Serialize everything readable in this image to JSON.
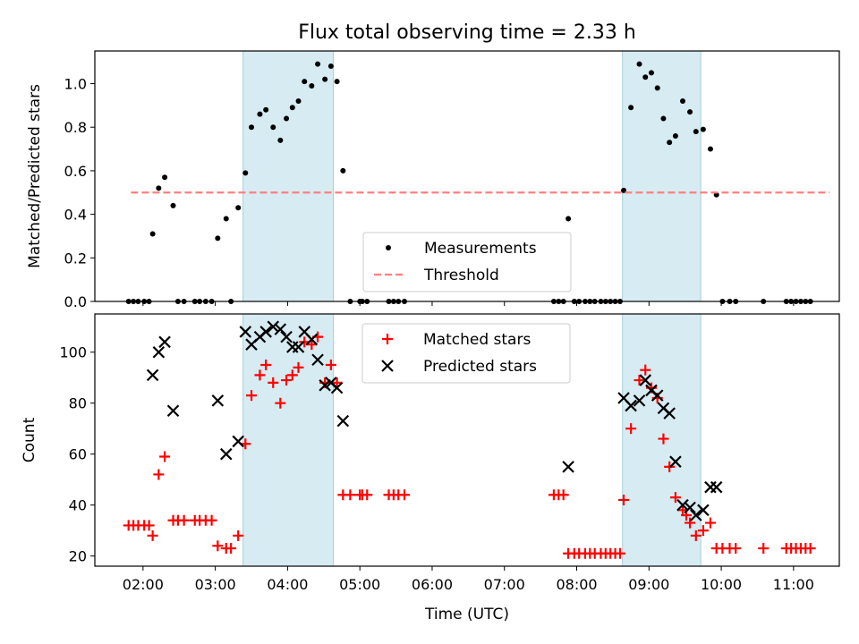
{
  "title": "Flux total observing time = 2.33 h",
  "chart_data": [
    {
      "type": "scatter",
      "ylabel": "Matched/Predicted stars",
      "xlim": [
        "01:20",
        "11:38"
      ],
      "ylim": [
        0,
        1.15
      ],
      "yticks": [
        0.0,
        0.2,
        0.4,
        0.6,
        0.8,
        1.0
      ],
      "ytick_labels": [
        "0.0",
        "0.2",
        "0.4",
        "0.6",
        "0.8",
        "1.0"
      ],
      "shaded_intervals": [
        [
          "03:23",
          "04:38"
        ],
        [
          "08:38",
          "09:43"
        ]
      ],
      "legend_position": "lower center",
      "series": [
        {
          "name": "Measurements",
          "marker": "dot",
          "color": "#000000",
          "points": [
            [
              "01:48",
              0
            ],
            [
              "01:52",
              0
            ],
            [
              "01:56",
              0
            ],
            [
              "02:01",
              0
            ],
            [
              "02:05",
              0
            ],
            [
              "02:08",
              0.31
            ],
            [
              "02:13",
              0.52
            ],
            [
              "02:18",
              0.57
            ],
            [
              "02:25",
              0.44
            ],
            [
              "02:29",
              0
            ],
            [
              "02:34",
              0
            ],
            [
              "02:43",
              0
            ],
            [
              "02:47",
              0
            ],
            [
              "02:52",
              0
            ],
            [
              "02:57",
              0
            ],
            [
              "03:02",
              0.29
            ],
            [
              "03:09",
              0.38
            ],
            [
              "03:13",
              0
            ],
            [
              "03:19",
              0.43
            ],
            [
              "03:25",
              0.59
            ],
            [
              "03:30",
              0.8
            ],
            [
              "03:37",
              0.86
            ],
            [
              "03:42",
              0.88
            ],
            [
              "03:48",
              0.8
            ],
            [
              "03:54",
              0.74
            ],
            [
              "03:59",
              0.84
            ],
            [
              "04:04",
              0.89
            ],
            [
              "04:09",
              0.92
            ],
            [
              "04:14",
              1.01
            ],
            [
              "04:20",
              0.99
            ],
            [
              "04:25",
              1.09
            ],
            [
              "04:31",
              1.02
            ],
            [
              "04:36",
              1.08
            ],
            [
              "04:41",
              1.01
            ],
            [
              "04:46",
              0.6
            ],
            [
              "04:52",
              0
            ],
            [
              "05:00",
              0
            ],
            [
              "05:02",
              0
            ],
            [
              "05:06",
              0
            ],
            [
              "05:24",
              0
            ],
            [
              "05:28",
              0
            ],
            [
              "05:32",
              0
            ],
            [
              "05:37",
              0
            ],
            [
              "07:41",
              0
            ],
            [
              "07:45",
              0
            ],
            [
              "07:49",
              0
            ],
            [
              "07:53",
              0.38
            ],
            [
              "07:58",
              0
            ],
            [
              "08:02",
              0
            ],
            [
              "08:07",
              0
            ],
            [
              "08:11",
              0
            ],
            [
              "08:15",
              0
            ],
            [
              "08:20",
              0
            ],
            [
              "08:24",
              0
            ],
            [
              "08:28",
              0
            ],
            [
              "08:32",
              0
            ],
            [
              "08:36",
              0
            ],
            [
              "08:39",
              0.51
            ],
            [
              "08:45",
              0.89
            ],
            [
              "08:52",
              1.09
            ],
            [
              "08:57",
              1.03
            ],
            [
              "09:02",
              1.05
            ],
            [
              "09:07",
              0.98
            ],
            [
              "09:12",
              0.84
            ],
            [
              "09:17",
              0.73
            ],
            [
              "09:22",
              0.76
            ],
            [
              "09:28",
              0.92
            ],
            [
              "09:34",
              0.87
            ],
            [
              "09:39",
              0.78
            ],
            [
              "09:45",
              0.79
            ],
            [
              "09:51",
              0.7
            ],
            [
              "09:56",
              0.49
            ],
            [
              "10:01",
              0
            ],
            [
              "10:07",
              0
            ],
            [
              "10:12",
              0
            ],
            [
              "10:35",
              0
            ],
            [
              "10:54",
              0
            ],
            [
              "10:58",
              0
            ],
            [
              "11:02",
              0
            ],
            [
              "11:06",
              0
            ],
            [
              "11:10",
              0
            ],
            [
              "11:14",
              0
            ]
          ]
        },
        {
          "name": "Threshold",
          "type": "line",
          "style": "dashed",
          "color": "#ff7f7f",
          "x": [
            "01:50",
            "11:30"
          ],
          "values": [
            0.5,
            0.5
          ]
        }
      ]
    },
    {
      "type": "scatter",
      "xlabel": "Time (UTC)",
      "ylabel": "Count",
      "xlim": [
        "01:20",
        "11:38"
      ],
      "ylim": [
        16,
        115
      ],
      "yticks": [
        20,
        40,
        60,
        80,
        100
      ],
      "ytick_labels": [
        "20",
        "40",
        "60",
        "80",
        "100"
      ],
      "xticks": [
        "02:00",
        "03:00",
        "04:00",
        "05:00",
        "06:00",
        "07:00",
        "08:00",
        "09:00",
        "10:00",
        "11:00"
      ],
      "shaded_intervals": [
        [
          "03:23",
          "04:38"
        ],
        [
          "08:38",
          "09:43"
        ]
      ],
      "legend_position": "upper center",
      "series": [
        {
          "name": "Matched stars",
          "marker": "plus",
          "color": "#ff0000",
          "points": [
            [
              "01:48",
              32
            ],
            [
              "01:52",
              32
            ],
            [
              "01:56",
              32
            ],
            [
              "02:01",
              32
            ],
            [
              "02:05",
              32
            ],
            [
              "02:08",
              28
            ],
            [
              "02:13",
              52
            ],
            [
              "02:18",
              59
            ],
            [
              "02:25",
              34
            ],
            [
              "02:29",
              34
            ],
            [
              "02:34",
              34
            ],
            [
              "02:43",
              34
            ],
            [
              "02:47",
              34
            ],
            [
              "02:52",
              34
            ],
            [
              "02:57",
              34
            ],
            [
              "03:02",
              24
            ],
            [
              "03:09",
              23
            ],
            [
              "03:13",
              23
            ],
            [
              "03:19",
              28
            ],
            [
              "03:25",
              64
            ],
            [
              "03:30",
              83
            ],
            [
              "03:37",
              91
            ],
            [
              "03:42",
              95
            ],
            [
              "03:48",
              88
            ],
            [
              "03:54",
              80
            ],
            [
              "03:59",
              89
            ],
            [
              "04:04",
              91
            ],
            [
              "04:09",
              94
            ],
            [
              "04:14",
              104
            ],
            [
              "04:20",
              103
            ],
            [
              "04:25",
              106
            ],
            [
              "04:31",
              88
            ],
            [
              "04:36",
              95
            ],
            [
              "04:41",
              88
            ],
            [
              "04:46",
              44
            ],
            [
              "04:52",
              44
            ],
            [
              "05:00",
              44
            ],
            [
              "05:02",
              44
            ],
            [
              "05:06",
              44
            ],
            [
              "05:24",
              44
            ],
            [
              "05:28",
              44
            ],
            [
              "05:32",
              44
            ],
            [
              "05:37",
              44
            ],
            [
              "07:41",
              44
            ],
            [
              "07:45",
              44
            ],
            [
              "07:49",
              44
            ],
            [
              "07:53",
              21
            ],
            [
              "07:58",
              21
            ],
            [
              "08:02",
              21
            ],
            [
              "08:07",
              21
            ],
            [
              "08:11",
              21
            ],
            [
              "08:15",
              21
            ],
            [
              "08:20",
              21
            ],
            [
              "08:24",
              21
            ],
            [
              "08:28",
              21
            ],
            [
              "08:32",
              21
            ],
            [
              "08:36",
              21
            ],
            [
              "08:39",
              42
            ],
            [
              "08:45",
              70
            ],
            [
              "08:52",
              89
            ],
            [
              "08:57",
              93
            ],
            [
              "09:02",
              86
            ],
            [
              "09:07",
              82
            ],
            [
              "09:12",
              66
            ],
            [
              "09:17",
              55
            ],
            [
              "09:22",
              43
            ],
            [
              "09:28",
              38
            ],
            [
              "09:31",
              36
            ],
            [
              "09:34",
              33
            ],
            [
              "09:39",
              28
            ],
            [
              "09:45",
              30
            ],
            [
              "09:51",
              33
            ],
            [
              "09:56",
              23
            ],
            [
              "10:01",
              23
            ],
            [
              "10:07",
              23
            ],
            [
              "10:12",
              23
            ],
            [
              "10:35",
              23
            ],
            [
              "10:54",
              23
            ],
            [
              "10:58",
              23
            ],
            [
              "11:02",
              23
            ],
            [
              "11:06",
              23
            ],
            [
              "11:10",
              23
            ],
            [
              "11:14",
              23
            ]
          ]
        },
        {
          "name": "Predicted stars",
          "marker": "x",
          "color": "#000000",
          "points": [
            [
              "02:08",
              91
            ],
            [
              "02:13",
              100
            ],
            [
              "02:18",
              104
            ],
            [
              "02:25",
              77
            ],
            [
              "03:02",
              81
            ],
            [
              "03:09",
              60
            ],
            [
              "03:19",
              65
            ],
            [
              "03:25",
              108
            ],
            [
              "03:30",
              103
            ],
            [
              "03:37",
              106
            ],
            [
              "03:42",
              108
            ],
            [
              "03:48",
              110
            ],
            [
              "03:54",
              109
            ],
            [
              "03:59",
              106
            ],
            [
              "04:04",
              102
            ],
            [
              "04:09",
              102
            ],
            [
              "04:14",
              108
            ],
            [
              "04:20",
              105
            ],
            [
              "04:25",
              97
            ],
            [
              "04:31",
              87
            ],
            [
              "04:36",
              88
            ],
            [
              "04:41",
              86
            ],
            [
              "04:46",
              73
            ],
            [
              "07:53",
              55
            ],
            [
              "08:39",
              82
            ],
            [
              "08:45",
              79
            ],
            [
              "08:52",
              81
            ],
            [
              "08:57",
              89
            ],
            [
              "09:02",
              85
            ],
            [
              "09:07",
              83
            ],
            [
              "09:12",
              78
            ],
            [
              "09:17",
              76
            ],
            [
              "09:22",
              57
            ],
            [
              "09:28",
              40
            ],
            [
              "09:34",
              39
            ],
            [
              "09:39",
              36
            ],
            [
              "09:45",
              38
            ],
            [
              "09:51",
              47
            ],
            [
              "09:56",
              47
            ]
          ]
        }
      ]
    }
  ]
}
